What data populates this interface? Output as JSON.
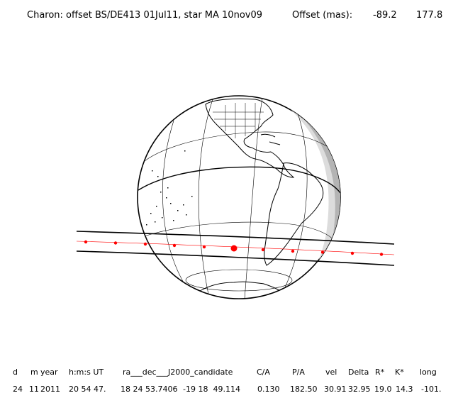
{
  "title": {
    "main": "Charon: offset BS/DE413 01Jul11, star MA 10nov09",
    "offset_label": "Offset (mas):",
    "offset_x": "-89.2",
    "offset_y": "177.8"
  },
  "table": {
    "headers": {
      "d": "d",
      "m": "m",
      "year": "year",
      "hms": "h:m:s UT",
      "radec": "ra___dec___J2000_candidate",
      "ca": "C/A",
      "pa": "P/A",
      "vel": "vel",
      "delta": "Delta",
      "rstar": "R*",
      "kstar": "K*",
      "long": "long"
    },
    "row": {
      "d": "24",
      "m": "11",
      "year": "2011",
      "hms": "20 54 47.",
      "ra": "18 24 53.7406",
      "dec": "-19 18  49.114",
      "ca": "0.130",
      "pa": "182.50",
      "vel": "30.91",
      "delta": "32.95",
      "rstar": "19.0",
      "kstar": "14.3",
      "long": "-101."
    }
  },
  "colors": {
    "lines": "#000000",
    "path": "#ff0000",
    "night_shade": "#dcdcdc",
    "twilight_shade": "#b4b4b4"
  }
}
